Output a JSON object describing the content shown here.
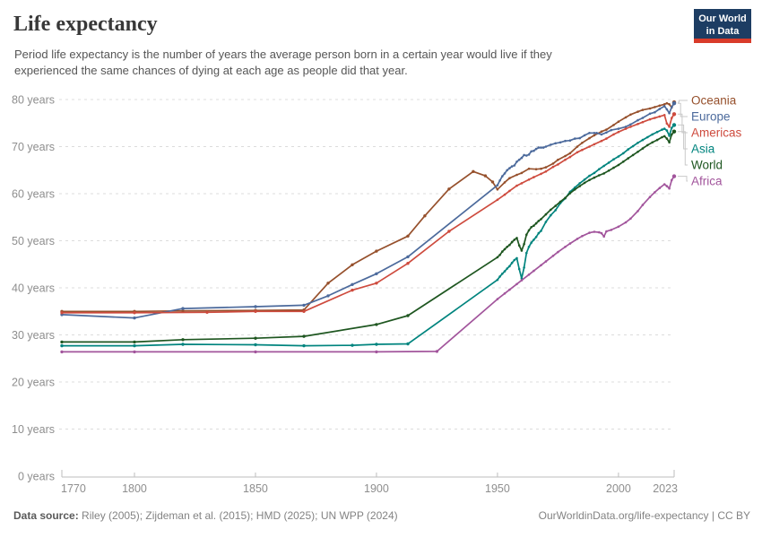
{
  "header": {
    "title": "Life expectancy",
    "subtitle": "Period life expectancy is the number of years the average person born in a certain year would live if they experienced the same chances of dying at each age as people did that year.",
    "logo": {
      "line1": "Our World",
      "line2": "in Data",
      "bg_color": "#1D3D63",
      "bar_color": "#D93B2A"
    }
  },
  "footer": {
    "source_label": "Data source:",
    "source_text": "Riley (2005); Zijdeman et al. (2015); HMD (2025); UN WPP (2024)",
    "right_text": "OurWorldinData.org/life-expectancy | CC BY"
  },
  "chart_data": {
    "type": "line",
    "title": "Life expectancy",
    "xlabel": "",
    "ylabel": "",
    "xlim": [
      1770,
      2023
    ],
    "ylim": [
      0,
      80
    ],
    "x_ticks": [
      1770,
      1800,
      1850,
      1900,
      1950,
      2000,
      2023
    ],
    "y_ticks": [
      0,
      10,
      20,
      30,
      40,
      50,
      60,
      70,
      80
    ],
    "y_tick_suffix": " years",
    "grid": "dashed-horizontal",
    "legend_position": "right",
    "axis_text_color": "#8e8e8e",
    "grid_color": "#dcdcdc",
    "axis_line_color": "#bdbdbd",
    "leader_line_color": "#c9c9c9",
    "series": [
      {
        "name": "Oceania",
        "color": "#96502C",
        "points": [
          [
            1770,
            35.0
          ],
          [
            1800,
            35.0
          ],
          [
            1820,
            35.1
          ],
          [
            1850,
            35.2
          ],
          [
            1870,
            35.3
          ],
          [
            1880,
            41.0
          ],
          [
            1890,
            44.9
          ],
          [
            1900,
            47.8
          ],
          [
            1913,
            51.0
          ],
          [
            1920,
            55.3
          ],
          [
            1930,
            61.0
          ],
          [
            1940,
            64.7
          ],
          [
            1945,
            63.8
          ],
          [
            1948,
            62.5
          ],
          [
            1950,
            60.9
          ],
          [
            1953,
            62.4
          ],
          [
            1955,
            63.3
          ],
          [
            1958,
            64.0
          ],
          [
            1960,
            64.4
          ],
          [
            1963,
            65.3
          ],
          [
            1966,
            65.2
          ],
          [
            1968,
            65.3
          ],
          [
            1970,
            65.6
          ],
          [
            1973,
            66.4
          ],
          [
            1975,
            67.2
          ],
          [
            1978,
            68.0
          ],
          [
            1980,
            68.6
          ],
          [
            1983,
            70.0
          ],
          [
            1985,
            70.8
          ],
          [
            1988,
            71.8
          ],
          [
            1990,
            72.4
          ],
          [
            1993,
            73.2
          ],
          [
            1995,
            73.6
          ],
          [
            1998,
            74.6
          ],
          [
            2000,
            75.3
          ],
          [
            2003,
            76.2
          ],
          [
            2005,
            76.8
          ],
          [
            2008,
            77.4
          ],
          [
            2010,
            77.8
          ],
          [
            2013,
            78.1
          ],
          [
            2015,
            78.4
          ],
          [
            2017,
            78.7
          ],
          [
            2019,
            79.0
          ],
          [
            2020,
            79.2
          ],
          [
            2021,
            79.0
          ],
          [
            2022,
            78.3
          ],
          [
            2023,
            79.4
          ]
        ]
      },
      {
        "name": "Europe",
        "color": "#4C6A9C",
        "points": [
          [
            1770,
            34.3
          ],
          [
            1800,
            33.6
          ],
          [
            1820,
            35.6
          ],
          [
            1850,
            36.0
          ],
          [
            1870,
            36.3
          ],
          [
            1880,
            38.3
          ],
          [
            1890,
            40.7
          ],
          [
            1900,
            43.0
          ],
          [
            1913,
            46.6
          ],
          [
            1950,
            61.8
          ],
          [
            1951,
            62.8
          ],
          [
            1952,
            63.7
          ],
          [
            1953,
            64.3
          ],
          [
            1954,
            65.0
          ],
          [
            1955,
            65.4
          ],
          [
            1956,
            65.8
          ],
          [
            1957,
            66.0
          ],
          [
            1958,
            66.8
          ],
          [
            1959,
            67.2
          ],
          [
            1960,
            67.6
          ],
          [
            1961,
            68.2
          ],
          [
            1962,
            68.1
          ],
          [
            1963,
            68.3
          ],
          [
            1964,
            69.0
          ],
          [
            1965,
            69.1
          ],
          [
            1966,
            69.5
          ],
          [
            1967,
            69.8
          ],
          [
            1968,
            69.8
          ],
          [
            1969,
            69.8
          ],
          [
            1970,
            70.0
          ],
          [
            1972,
            70.4
          ],
          [
            1974,
            70.7
          ],
          [
            1976,
            70.9
          ],
          [
            1978,
            71.2
          ],
          [
            1980,
            71.3
          ],
          [
            1982,
            71.7
          ],
          [
            1984,
            71.8
          ],
          [
            1986,
            72.4
          ],
          [
            1988,
            72.9
          ],
          [
            1990,
            72.9
          ],
          [
            1991,
            72.9
          ],
          [
            1993,
            72.6
          ],
          [
            1995,
            73.0
          ],
          [
            1997,
            73.5
          ],
          [
            2000,
            73.8
          ],
          [
            2003,
            74.2
          ],
          [
            2005,
            74.7
          ],
          [
            2008,
            75.6
          ],
          [
            2010,
            76.1
          ],
          [
            2013,
            77.0
          ],
          [
            2015,
            77.3
          ],
          [
            2017,
            78.0
          ],
          [
            2019,
            78.6
          ],
          [
            2020,
            77.9
          ],
          [
            2021,
            77.1
          ],
          [
            2022,
            78.4
          ],
          [
            2023,
            79.2
          ]
        ]
      },
      {
        "name": "Americas",
        "color": "#CE4B3E",
        "points": [
          [
            1770,
            34.7
          ],
          [
            1800,
            34.7
          ],
          [
            1830,
            34.8
          ],
          [
            1850,
            35.0
          ],
          [
            1870,
            35.0
          ],
          [
            1890,
            39.5
          ],
          [
            1900,
            41.0
          ],
          [
            1913,
            45.2
          ],
          [
            1930,
            52.0
          ],
          [
            1950,
            58.7
          ],
          [
            1953,
            59.8
          ],
          [
            1955,
            60.6
          ],
          [
            1958,
            61.7
          ],
          [
            1960,
            62.2
          ],
          [
            1963,
            63.0
          ],
          [
            1965,
            63.5
          ],
          [
            1968,
            64.2
          ],
          [
            1970,
            64.7
          ],
          [
            1973,
            65.7
          ],
          [
            1975,
            66.2
          ],
          [
            1978,
            67.2
          ],
          [
            1980,
            67.8
          ],
          [
            1983,
            68.8
          ],
          [
            1985,
            69.3
          ],
          [
            1988,
            70.0
          ],
          [
            1990,
            70.5
          ],
          [
            1993,
            71.2
          ],
          [
            1995,
            71.7
          ],
          [
            1998,
            72.6
          ],
          [
            2000,
            73.1
          ],
          [
            2003,
            73.8
          ],
          [
            2005,
            74.2
          ],
          [
            2008,
            74.8
          ],
          [
            2010,
            75.2
          ],
          [
            2013,
            75.8
          ],
          [
            2015,
            76.1
          ],
          [
            2017,
            76.4
          ],
          [
            2019,
            76.7
          ],
          [
            2020,
            74.9
          ],
          [
            2021,
            74.2
          ],
          [
            2022,
            76.1
          ],
          [
            2023,
            76.9
          ]
        ]
      },
      {
        "name": "Asia",
        "color": "#00847E",
        "points": [
          [
            1770,
            27.7
          ],
          [
            1800,
            27.7
          ],
          [
            1820,
            28.0
          ],
          [
            1850,
            27.9
          ],
          [
            1870,
            27.7
          ],
          [
            1890,
            27.8
          ],
          [
            1900,
            28.0
          ],
          [
            1913,
            28.1
          ],
          [
            1950,
            41.7
          ],
          [
            1951,
            42.4
          ],
          [
            1952,
            43.0
          ],
          [
            1953,
            43.5
          ],
          [
            1954,
            44.1
          ],
          [
            1955,
            44.6
          ],
          [
            1956,
            45.3
          ],
          [
            1957,
            45.9
          ],
          [
            1958,
            46.3
          ],
          [
            1959,
            44.0
          ],
          [
            1960,
            42.0
          ],
          [
            1961,
            44.3
          ],
          [
            1962,
            47.4
          ],
          [
            1963,
            48.7
          ],
          [
            1964,
            49.6
          ],
          [
            1965,
            50.2
          ],
          [
            1966,
            50.8
          ],
          [
            1967,
            51.6
          ],
          [
            1968,
            52.1
          ],
          [
            1970,
            54.0
          ],
          [
            1972,
            55.4
          ],
          [
            1974,
            56.5
          ],
          [
            1976,
            58.0
          ],
          [
            1978,
            59.0
          ],
          [
            1980,
            60.4
          ],
          [
            1982,
            61.3
          ],
          [
            1984,
            62.2
          ],
          [
            1986,
            63.0
          ],
          [
            1988,
            63.8
          ],
          [
            1990,
            64.4
          ],
          [
            1992,
            65.2
          ],
          [
            1994,
            65.9
          ],
          [
            1996,
            66.6
          ],
          [
            1998,
            67.3
          ],
          [
            2000,
            67.9
          ],
          [
            2002,
            68.6
          ],
          [
            2004,
            69.4
          ],
          [
            2006,
            70.1
          ],
          [
            2008,
            70.8
          ],
          [
            2010,
            71.4
          ],
          [
            2012,
            72.0
          ],
          [
            2014,
            72.6
          ],
          [
            2016,
            73.1
          ],
          [
            2018,
            73.6
          ],
          [
            2019,
            73.8
          ],
          [
            2020,
            73.4
          ],
          [
            2021,
            72.3
          ],
          [
            2022,
            74.0
          ],
          [
            2023,
            74.6
          ]
        ]
      },
      {
        "name": "World",
        "color": "#1E5620",
        "points": [
          [
            1770,
            28.5
          ],
          [
            1800,
            28.5
          ],
          [
            1820,
            29.0
          ],
          [
            1850,
            29.3
          ],
          [
            1870,
            29.7
          ],
          [
            1900,
            32.2
          ],
          [
            1913,
            34.1
          ],
          [
            1950,
            46.5
          ],
          [
            1951,
            47.0
          ],
          [
            1952,
            47.7
          ],
          [
            1953,
            48.2
          ],
          [
            1954,
            48.7
          ],
          [
            1955,
            49.1
          ],
          [
            1956,
            49.7
          ],
          [
            1957,
            50.2
          ],
          [
            1958,
            50.6
          ],
          [
            1959,
            49.0
          ],
          [
            1960,
            47.9
          ],
          [
            1961,
            49.3
          ],
          [
            1962,
            51.3
          ],
          [
            1963,
            52.2
          ],
          [
            1964,
            52.9
          ],
          [
            1965,
            53.2
          ],
          [
            1966,
            53.7
          ],
          [
            1967,
            54.2
          ],
          [
            1968,
            54.6
          ],
          [
            1970,
            55.6
          ],
          [
            1972,
            56.6
          ],
          [
            1974,
            57.4
          ],
          [
            1976,
            58.3
          ],
          [
            1978,
            59.1
          ],
          [
            1980,
            60.1
          ],
          [
            1982,
            60.9
          ],
          [
            1984,
            61.6
          ],
          [
            1986,
            62.3
          ],
          [
            1988,
            62.9
          ],
          [
            1990,
            63.4
          ],
          [
            1992,
            63.9
          ],
          [
            1994,
            64.3
          ],
          [
            1996,
            64.9
          ],
          [
            1998,
            65.5
          ],
          [
            2000,
            66.1
          ],
          [
            2002,
            66.8
          ],
          [
            2004,
            67.5
          ],
          [
            2006,
            68.2
          ],
          [
            2008,
            68.9
          ],
          [
            2010,
            69.6
          ],
          [
            2012,
            70.3
          ],
          [
            2014,
            70.9
          ],
          [
            2016,
            71.4
          ],
          [
            2018,
            72.0
          ],
          [
            2019,
            72.2
          ],
          [
            2020,
            71.7
          ],
          [
            2021,
            70.9
          ],
          [
            2022,
            72.6
          ],
          [
            2023,
            73.2
          ]
        ]
      },
      {
        "name": "Africa",
        "color": "#A2559C",
        "points": [
          [
            1770,
            26.4
          ],
          [
            1800,
            26.4
          ],
          [
            1850,
            26.4
          ],
          [
            1900,
            26.4
          ],
          [
            1925,
            26.5
          ],
          [
            1950,
            37.6
          ],
          [
            1953,
            38.8
          ],
          [
            1955,
            39.6
          ],
          [
            1958,
            40.8
          ],
          [
            1960,
            41.6
          ],
          [
            1963,
            42.8
          ],
          [
            1965,
            43.6
          ],
          [
            1968,
            44.8
          ],
          [
            1970,
            45.6
          ],
          [
            1973,
            46.8
          ],
          [
            1975,
            47.6
          ],
          [
            1978,
            48.7
          ],
          [
            1980,
            49.4
          ],
          [
            1983,
            50.4
          ],
          [
            1985,
            51.0
          ],
          [
            1988,
            51.7
          ],
          [
            1990,
            51.9
          ],
          [
            1992,
            51.8
          ],
          [
            1993,
            51.6
          ],
          [
            1994,
            50.9
          ],
          [
            1995,
            52.0
          ],
          [
            1997,
            52.3
          ],
          [
            2000,
            53.0
          ],
          [
            2003,
            53.9
          ],
          [
            2005,
            54.7
          ],
          [
            2008,
            56.3
          ],
          [
            2010,
            57.6
          ],
          [
            2013,
            59.3
          ],
          [
            2015,
            60.3
          ],
          [
            2017,
            61.2
          ],
          [
            2019,
            62.0
          ],
          [
            2020,
            61.6
          ],
          [
            2021,
            61.1
          ],
          [
            2022,
            62.9
          ],
          [
            2023,
            63.7
          ]
        ]
      }
    ]
  }
}
